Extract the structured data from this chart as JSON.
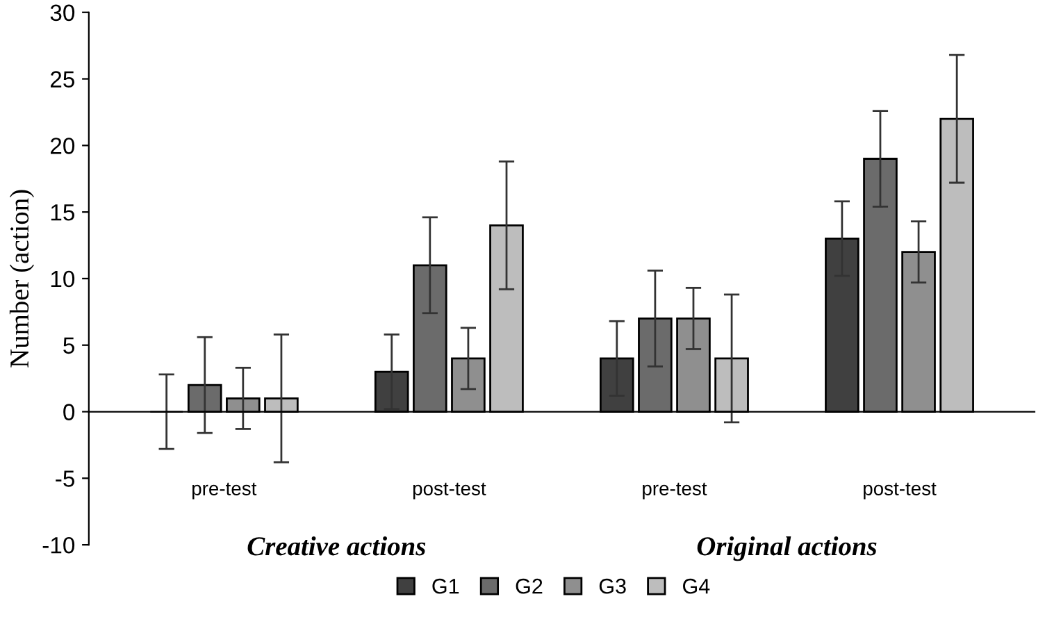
{
  "chart_data": {
    "type": "bar",
    "ylabel": "Number (action)",
    "categories": [
      "pre-test",
      "post-test",
      "pre-test",
      "post-test"
    ],
    "series": [
      {
        "name": "G1",
        "color": "#404040",
        "values": [
          0,
          3,
          4,
          13
        ],
        "errors": [
          2.8,
          2.8,
          2.8,
          2.8
        ]
      },
      {
        "name": "G2",
        "color": "#6b6b6b",
        "values": [
          2,
          11,
          7,
          19
        ],
        "errors": [
          3.6,
          3.6,
          3.6,
          3.6
        ]
      },
      {
        "name": "G3",
        "color": "#8f8f8f",
        "values": [
          1,
          4,
          7,
          12
        ],
        "errors": [
          2.3,
          2.3,
          2.3,
          2.3
        ]
      },
      {
        "name": "G4",
        "color": "#bdbdbd",
        "values": [
          1,
          14,
          4,
          22
        ],
        "errors": [
          4.8,
          4.8,
          4.8,
          4.8
        ]
      }
    ],
    "annotations": [
      "Creative actions",
      "Original actions"
    ],
    "ylim": [
      -10,
      30
    ],
    "yticks": [
      -10,
      -5,
      0,
      5,
      10,
      15,
      20,
      25,
      30
    ],
    "legend": "bottom"
  }
}
